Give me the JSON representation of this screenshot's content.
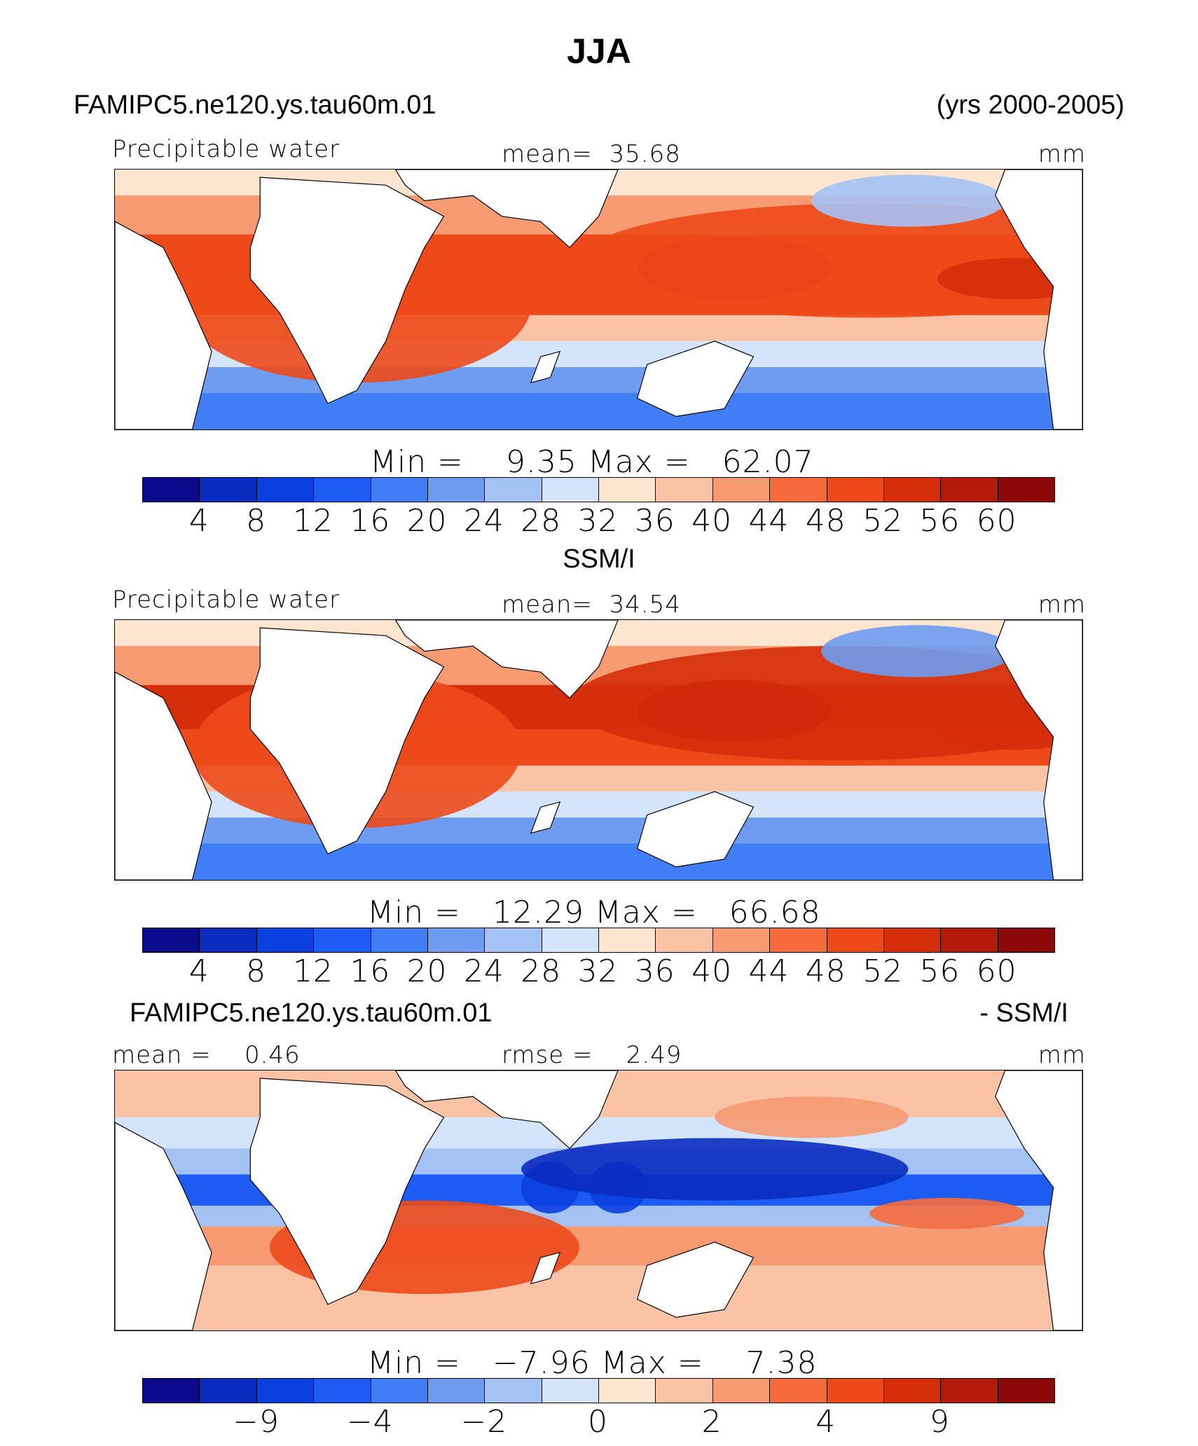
{
  "title": "JJA",
  "case_name": "FAMIPC5.ne120.ys.tau60m.01",
  "years": "(yrs 2000-2005)",
  "obs_title": "SSM/I",
  "diff_title_left": "FAMIPC5.ne120.ys.tau60m.01",
  "diff_title_right": "- SSM/I",
  "colors": {
    "levels": [
      "#0b0b8c",
      "#0a2bc0",
      "#0a3fe0",
      "#1d5cf2",
      "#3f7ef5",
      "#6d9cf0",
      "#a5c2f5",
      "#d3e4fb",
      "#fde5cf",
      "#fbc3a6",
      "#f69a72",
      "#f56b3b",
      "#ed4a19",
      "#d62e0b",
      "#b31a0a",
      "#8b0a07"
    ],
    "land": "#ffffff"
  },
  "chart_data": [
    {
      "type": "heatmap",
      "panel": "model",
      "title": "Precipitable water",
      "mean_label": "mean=",
      "mean": "35.68",
      "units": "mm",
      "min_label": "Min =",
      "min": "9.35",
      "max_label": "Max =",
      "max": "62.07",
      "levels": [
        "4",
        "8",
        "12",
        "16",
        "20",
        "24",
        "28",
        "32",
        "36",
        "40",
        "44",
        "48",
        "52",
        "56",
        "60"
      ]
    },
    {
      "type": "heatmap",
      "panel": "obs",
      "title": "Precipitable water",
      "mean_label": "mean=",
      "mean": "34.54",
      "units": "mm",
      "min_label": "Min =",
      "min": "12.29",
      "max_label": "Max =",
      "max": "66.68",
      "levels": [
        "4",
        "8",
        "12",
        "16",
        "20",
        "24",
        "28",
        "32",
        "36",
        "40",
        "44",
        "48",
        "52",
        "56",
        "60"
      ]
    },
    {
      "type": "heatmap",
      "panel": "diff",
      "mean_label": "mean =",
      "mean": "0.46",
      "rmse_label": "rmse =",
      "rmse": "2.49",
      "units": "mm",
      "min_label": "Min =",
      "min": "−7.96",
      "max_label": "Max =",
      "max": "7.38",
      "levels": [
        "−9",
        "−4",
        "−2",
        "0",
        "2",
        "4",
        "9"
      ]
    }
  ]
}
